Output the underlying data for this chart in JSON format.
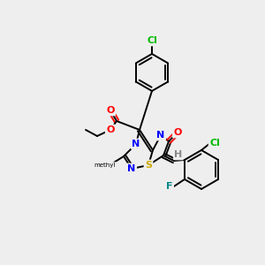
{
  "bg_color": "#eeeeee",
  "bond_color": "#000000",
  "atom_colors": {
    "O": "#ff0000",
    "N": "#0000ff",
    "S": "#ccaa00",
    "Cl_green": "#00bb00",
    "Cl_dark": "#007700",
    "F": "#008888",
    "H": "#888888",
    "C": "#000000"
  },
  "figsize": [
    3.0,
    3.0
  ],
  "dpi": 100
}
